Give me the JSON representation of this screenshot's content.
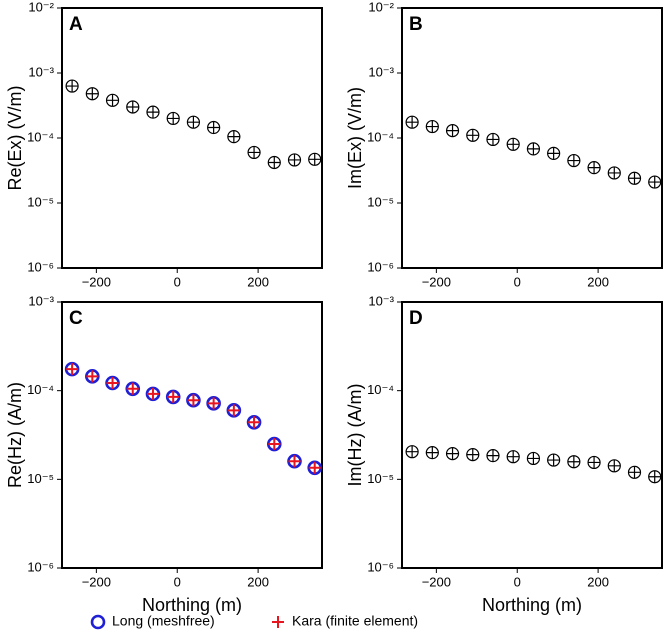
{
  "chart_data": [
    {
      "type": "scatter",
      "panel": "A",
      "ylabel": "Re(Ex) (V/m)",
      "log_y": true,
      "x": [
        -260,
        -210,
        -160,
        -110,
        -60,
        -10,
        40,
        90,
        140,
        190,
        240,
        290,
        340
      ],
      "xlim": [
        -285,
        358
      ],
      "xticks": [
        {
          "value": -200,
          "label": "−200"
        },
        0,
        200
      ],
      "ylim": [
        1e-06,
        0.01
      ],
      "yticks": [
        {
          "value": 1e-06,
          "label": "10⁻⁶"
        },
        {
          "value": 1e-05,
          "label": "10⁻⁵"
        },
        {
          "value": 0.0001,
          "label": "10⁻⁴"
        },
        {
          "value": 0.001,
          "label": "10⁻³"
        },
        {
          "value": 0.01,
          "label": "10⁻²"
        }
      ],
      "series": [
        {
          "name": "Long (meshfree)",
          "color": "#000000",
          "values": [
            0.00063,
            0.00048,
            0.00038,
            0.0003,
            0.00025,
            0.0002,
            0.000175,
            0.000145,
            0.000105,
            6e-05,
            4.2e-05,
            4.6e-05,
            4.7e-05
          ]
        },
        {
          "name": "Kara (finite element)",
          "color": "#000000",
          "values": [
            0.00063,
            0.00048,
            0.00038,
            0.0003,
            0.00025,
            0.0002,
            0.000175,
            0.000145,
            0.000105,
            6e-05,
            4.2e-05,
            4.6e-05,
            4.7e-05
          ]
        }
      ]
    },
    {
      "type": "scatter",
      "panel": "B",
      "ylabel": "Im(Ex) (V/m)",
      "log_y": true,
      "x": [
        -260,
        -210,
        -160,
        -110,
        -60,
        -10,
        40,
        90,
        140,
        190,
        240,
        290,
        340
      ],
      "xlim": [
        -285,
        358
      ],
      "xticks": [
        {
          "value": -200,
          "label": "−200"
        },
        0,
        200
      ],
      "ylim": [
        1e-06,
        0.01
      ],
      "yticks": [
        {
          "value": 1e-06,
          "label": "10⁻⁶"
        },
        {
          "value": 1e-05,
          "label": "10⁻⁵"
        },
        {
          "value": 0.0001,
          "label": "10⁻⁴"
        },
        {
          "value": 0.001,
          "label": "10⁻³"
        },
        {
          "value": 0.01,
          "label": "10⁻²"
        }
      ],
      "series": [
        {
          "name": "Long (meshfree)",
          "color": "#000000",
          "values": [
            0.000175,
            0.00015,
            0.00013,
            0.00011,
            9.5e-05,
            8e-05,
            6.8e-05,
            5.8e-05,
            4.5e-05,
            3.5e-05,
            2.9e-05,
            2.4e-05,
            2.1e-05
          ]
        },
        {
          "name": "Kara (finite element)",
          "color": "#000000",
          "values": [
            0.000175,
            0.00015,
            0.00013,
            0.00011,
            9.5e-05,
            8e-05,
            6.8e-05,
            5.8e-05,
            4.5e-05,
            3.5e-05,
            2.9e-05,
            2.4e-05,
            2.1e-05
          ]
        }
      ]
    },
    {
      "type": "scatter",
      "panel": "C",
      "ylabel": "Re(Hz) (A/m)",
      "xlabel": "Northing (m)",
      "log_y": true,
      "x": [
        -260,
        -210,
        -160,
        -110,
        -60,
        -10,
        40,
        90,
        140,
        190,
        240,
        290,
        340
      ],
      "xlim": [
        -285,
        358
      ],
      "xticks": [
        {
          "value": -200,
          "label": "−200"
        },
        0,
        200
      ],
      "ylim": [
        1e-06,
        0.001
      ],
      "yticks": [
        {
          "value": 1e-06,
          "label": "10⁻⁶"
        },
        {
          "value": 1e-05,
          "label": "10⁻⁵"
        },
        {
          "value": 0.0001,
          "label": "10⁻⁴"
        },
        {
          "value": 0.001,
          "label": "10⁻³"
        }
      ],
      "series": [
        {
          "name": "Long (meshfree)",
          "color": "#1f1fd6",
          "values": [
            0.000175,
            0.000145,
            0.000122,
            0.000105,
            9.2e-05,
            8.5e-05,
            7.8e-05,
            7.2e-05,
            6e-05,
            4.4e-05,
            2.5e-05,
            1.6e-05,
            1.35e-05
          ]
        },
        {
          "name": "Kara (finite element)",
          "color": "#e8141e",
          "values": [
            0.000175,
            0.000145,
            0.000122,
            0.000105,
            9.2e-05,
            8.5e-05,
            7.8e-05,
            7.2e-05,
            6e-05,
            4.4e-05,
            2.5e-05,
            1.6e-05,
            1.35e-05
          ]
        }
      ]
    },
    {
      "type": "scatter",
      "panel": "D",
      "ylabel": "Im(Hz) (A/m)",
      "xlabel": "Northing (m)",
      "log_y": true,
      "x": [
        -260,
        -210,
        -160,
        -110,
        -60,
        -10,
        40,
        90,
        140,
        190,
        240,
        290,
        340
      ],
      "xlim": [
        -285,
        358
      ],
      "xticks": [
        {
          "value": -200,
          "label": "−200"
        },
        0,
        200
      ],
      "ylim": [
        1e-06,
        0.001
      ],
      "yticks": [
        {
          "value": 1e-06,
          "label": "10⁻⁶"
        },
        {
          "value": 1e-05,
          "label": "10⁻⁵"
        },
        {
          "value": 0.0001,
          "label": "10⁻⁴"
        },
        {
          "value": 0.001,
          "label": "10⁻³"
        }
      ],
      "series": [
        {
          "name": "Long (meshfree)",
          "color": "#000000",
          "values": [
            2.05e-05,
            2e-05,
            1.95e-05,
            1.9e-05,
            1.85e-05,
            1.8e-05,
            1.72e-05,
            1.65e-05,
            1.58e-05,
            1.55e-05,
            1.42e-05,
            1.2e-05,
            1.07e-05
          ]
        },
        {
          "name": "Kara (finite element)",
          "color": "#000000",
          "values": [
            2.05e-05,
            2e-05,
            1.95e-05,
            1.9e-05,
            1.85e-05,
            1.8e-05,
            1.72e-05,
            1.65e-05,
            1.58e-05,
            1.55e-05,
            1.42e-05,
            1.2e-05,
            1.07e-05
          ]
        }
      ]
    }
  ]
}
